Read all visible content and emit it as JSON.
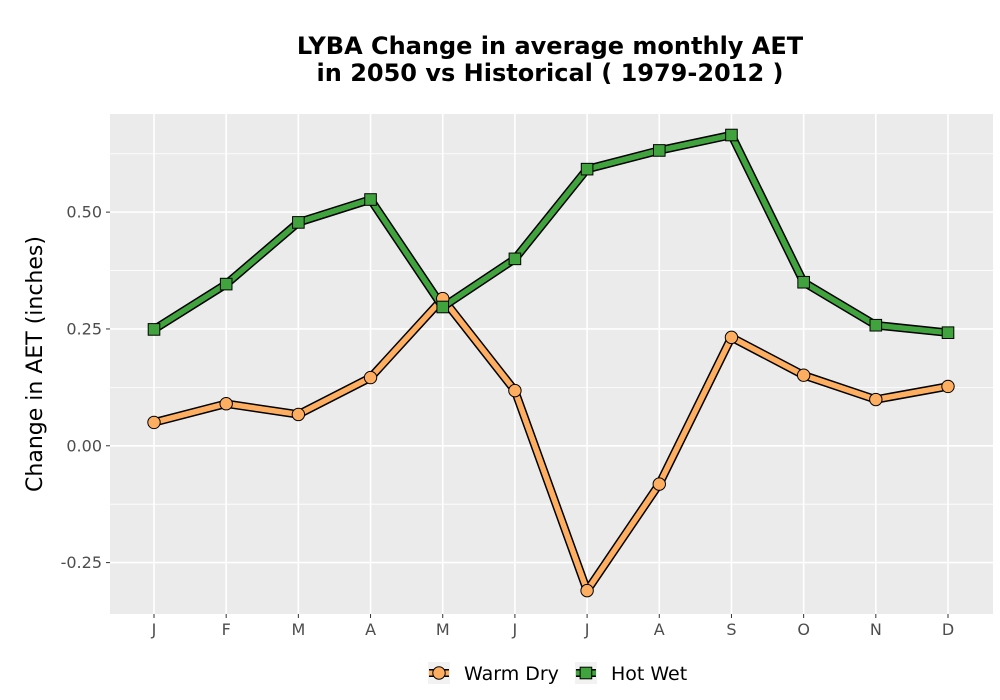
{
  "chart_data": {
    "type": "line",
    "title_line1": "LYBA  Change in average monthly AET",
    "title_line2": "in 2050 vs Historical ( 1979-2012 )",
    "xlabel": "",
    "ylabel": "Change in AET (inches)",
    "categories": [
      "J",
      "F",
      "M",
      "A",
      "M",
      "J",
      "J",
      "A",
      "S",
      "O",
      "N",
      "D"
    ],
    "ylim": [
      -0.36,
      0.71
    ],
    "yticks": [
      -0.25,
      0.0,
      0.25,
      0.5
    ],
    "ytick_labels": [
      "-0.25",
      "0.00",
      "0.25",
      "0.50"
    ],
    "grid": true,
    "legend_position": "bottom",
    "series": [
      {
        "name": "Warm Dry",
        "color": "#FDAE61",
        "marker": "circle",
        "values": [
          0.05,
          0.09,
          0.067,
          0.146,
          0.315,
          0.118,
          -0.31,
          -0.082,
          0.232,
          0.151,
          0.099,
          0.127
        ]
      },
      {
        "name": "Hot Wet",
        "color": "#41A33D",
        "marker": "square",
        "values": [
          0.249,
          0.346,
          0.478,
          0.527,
          0.297,
          0.4,
          0.592,
          0.632,
          0.665,
          0.35,
          0.258,
          0.242
        ]
      }
    ]
  }
}
